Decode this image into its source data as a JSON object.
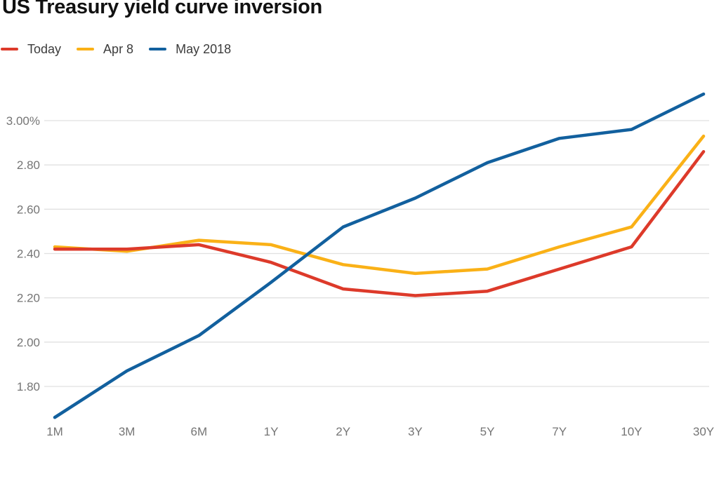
{
  "header": {
    "title": "US Treasury yield curve inversion"
  },
  "colors": {
    "today": "#dd3a2a",
    "apr8": "#fab117",
    "may2018": "#12609e",
    "grid": "#e0e0e0",
    "axis_text": "#757575",
    "title_text": "#111111",
    "legend_text": "#3c3c3c",
    "background": "#ffffff"
  },
  "chart_data": {
    "type": "line",
    "title": "US Treasury yield curve inversion",
    "xlabel": "",
    "ylabel": "",
    "categories": [
      "1M",
      "3M",
      "6M",
      "1Y",
      "2Y",
      "3Y",
      "5Y",
      "7Y",
      "10Y",
      "30Y"
    ],
    "series": [
      {
        "name": "Today",
        "color": "#dd3a2a",
        "values": [
          2.42,
          2.42,
          2.44,
          2.36,
          2.24,
          2.21,
          2.23,
          2.33,
          2.43,
          2.86
        ]
      },
      {
        "name": "Apr 8",
        "color": "#fab117",
        "values": [
          2.43,
          2.41,
          2.46,
          2.44,
          2.35,
          2.31,
          2.33,
          2.43,
          2.52,
          2.93
        ]
      },
      {
        "name": "May 2018",
        "color": "#12609e",
        "values": [
          1.66,
          1.87,
          2.03,
          2.27,
          2.52,
          2.65,
          2.81,
          2.92,
          2.96,
          3.12
        ]
      }
    ],
    "y_ticks": [
      1.8,
      2.0,
      2.2,
      2.4,
      2.6,
      2.8,
      3.0
    ],
    "y_tick_labels": [
      "1.80",
      "2.00",
      "2.20",
      "2.40",
      "2.60",
      "2.80",
      "3.00%"
    ],
    "ylim": [
      1.6,
      3.14
    ],
    "grid": "horizontal",
    "legend_position": "top-left",
    "units": "percent"
  }
}
